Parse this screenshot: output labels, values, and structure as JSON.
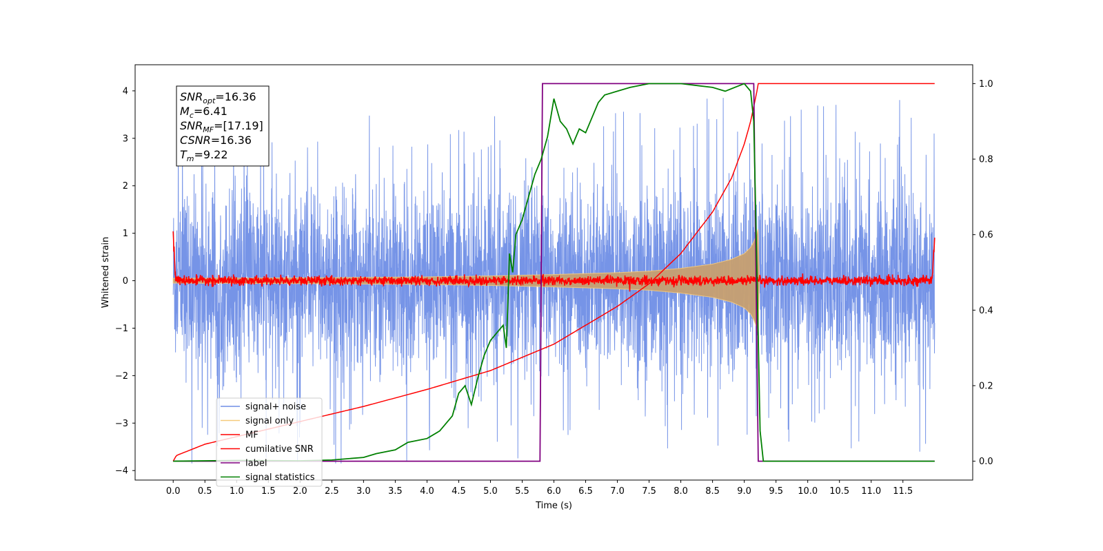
{
  "chart_data": {
    "type": "line",
    "title": "",
    "xlabel": "Time (s)",
    "ylabel": "Whitened strain",
    "xlim": [
      -0.6,
      12.6
    ],
    "ylim": [
      -4.2,
      4.55
    ],
    "y2lim": [
      -0.05,
      1.05
    ],
    "x_ticks": [
      0.0,
      0.5,
      1.0,
      1.5,
      2.0,
      2.5,
      3.0,
      3.5,
      4.0,
      4.5,
      5.0,
      5.5,
      6.0,
      6.5,
      7.0,
      7.5,
      8.0,
      8.5,
      9.0,
      9.5,
      10.0,
      10.5,
      11.0,
      11.5
    ],
    "x_tick_labels": [
      "0.0",
      "0.5",
      "1.0",
      "1.5",
      "2.0",
      "2.5",
      "3.0",
      "3.5",
      "4.0",
      "4.5",
      "5.0",
      "5.5",
      "6.0",
      "6.5",
      "7.0",
      "7.5",
      "8.0",
      "8.5",
      "9.0",
      "9.5",
      "10.0",
      "10.5",
      "11.0",
      "11.5"
    ],
    "y_ticks": [
      4,
      3,
      2,
      1,
      0,
      -1,
      -2,
      -3,
      -4
    ],
    "y_tick_labels": [
      "4",
      "3",
      "2",
      "1",
      "0",
      "−1",
      "−2",
      "−3",
      "−4"
    ],
    "y2_ticks": [
      1.0,
      0.8,
      0.6,
      0.4,
      0.2,
      0.0
    ],
    "y2_tick_labels": [
      "1.0",
      "0.8",
      "0.6",
      "0.4",
      "0.2",
      "0.0"
    ],
    "legend_position": "lower-left",
    "legend": [
      {
        "label": "signal+ noise",
        "color": "#6f8ee6"
      },
      {
        "label": "signal only",
        "color": "#f5c97a"
      },
      {
        "label": "MF",
        "color": "#ff0000"
      },
      {
        "label": "cumilative SNR",
        "color": "#ff0000"
      },
      {
        "label": "label",
        "color": "#800080"
      },
      {
        "label": "signal statistics",
        "color": "#008000"
      }
    ],
    "annotation": {
      "lines": [
        {
          "base": "SNR",
          "sub": "opt",
          "rest": "=16.36"
        },
        {
          "base": "M",
          "sub": "c",
          "rest": "=6.41"
        },
        {
          "base": "SNR",
          "sub": "MF",
          "rest": "=[17.19]"
        },
        {
          "base": "CSNR",
          "sub": "",
          "rest": "=16.36"
        },
        {
          "base": "T",
          "sub": "m",
          "rest": "=9.22"
        }
      ]
    },
    "series": [
      {
        "name": "signal+ noise",
        "color": "#6f8ee6",
        "axis": "left",
        "x_range": [
          0.0,
          12.0
        ],
        "envelope_typical": 2.4,
        "peak_max": 4.15,
        "peak_min": -3.85
      },
      {
        "name": "signal only",
        "color": "#f5c97a",
        "axis": "left",
        "x": [
          0.0,
          2.0,
          4.0,
          5.0,
          6.0,
          7.0,
          7.5,
          8.0,
          8.5,
          8.8,
          9.0,
          9.1,
          9.15,
          9.2,
          9.22,
          9.24
        ],
        "amplitude": [
          0.05,
          0.06,
          0.08,
          0.1,
          0.13,
          0.17,
          0.2,
          0.26,
          0.35,
          0.45,
          0.57,
          0.7,
          0.82,
          1.0,
          1.1,
          0.0
        ]
      },
      {
        "name": "MF",
        "color": "#ff0000",
        "axis": "left",
        "x_range": [
          0.0,
          12.0
        ],
        "noise_amplitude": 0.06,
        "edge_values": [
          1.0,
          0.95
        ]
      },
      {
        "name": "cumilative SNR",
        "color": "#ff0000",
        "axis": "right",
        "x": [
          0.0,
          0.05,
          0.5,
          1.0,
          2.0,
          3.0,
          4.0,
          5.0,
          6.0,
          7.0,
          7.5,
          8.0,
          8.5,
          8.8,
          9.0,
          9.1,
          9.2,
          9.22,
          12.0
        ],
        "y": [
          0.0,
          0.015,
          0.045,
          0.065,
          0.105,
          0.145,
          0.19,
          0.24,
          0.31,
          0.41,
          0.47,
          0.55,
          0.66,
          0.75,
          0.84,
          0.9,
          0.98,
          1.0,
          1.0
        ]
      },
      {
        "name": "label",
        "color": "#800080",
        "axis": "right",
        "x": [
          0.0,
          5.78,
          5.82,
          9.15,
          9.22,
          12.0
        ],
        "y": [
          0.0,
          0.0,
          1.0,
          1.0,
          0.0,
          0.0
        ]
      },
      {
        "name": "signal statistics",
        "color": "#008000",
        "axis": "right",
        "x": [
          0.0,
          1.0,
          2.0,
          2.5,
          3.0,
          3.2,
          3.5,
          3.7,
          4.0,
          4.2,
          4.4,
          4.5,
          4.6,
          4.7,
          4.8,
          4.9,
          5.0,
          5.1,
          5.2,
          5.25,
          5.3,
          5.35,
          5.4,
          5.5,
          5.6,
          5.7,
          5.8,
          5.9,
          6.0,
          6.1,
          6.2,
          6.3,
          6.4,
          6.5,
          6.7,
          6.8,
          7.0,
          7.2,
          7.5,
          8.0,
          8.5,
          8.7,
          9.0,
          9.1,
          9.15,
          9.2,
          9.25,
          9.3,
          12.0
        ],
        "y": [
          0.0,
          0.002,
          0.001,
          0.003,
          0.01,
          0.02,
          0.03,
          0.05,
          0.06,
          0.08,
          0.12,
          0.18,
          0.2,
          0.15,
          0.22,
          0.28,
          0.32,
          0.34,
          0.36,
          0.3,
          0.55,
          0.5,
          0.6,
          0.64,
          0.7,
          0.76,
          0.8,
          0.86,
          0.96,
          0.9,
          0.88,
          0.84,
          0.88,
          0.87,
          0.95,
          0.97,
          0.98,
          0.99,
          1.0,
          1.0,
          0.99,
          0.98,
          1.0,
          0.98,
          0.9,
          0.5,
          0.08,
          0.0,
          0.0
        ]
      }
    ]
  }
}
